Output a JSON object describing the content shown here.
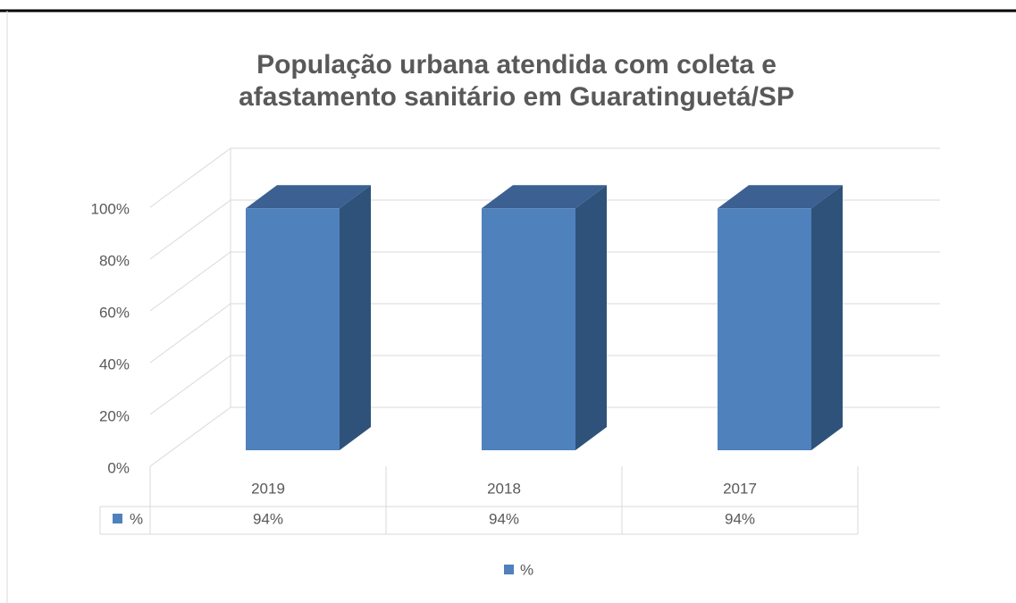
{
  "chart_data": {
    "type": "bar3d",
    "title": "População urbana atendida com coleta e afastamento sanitário em Guaratinguetá/SP",
    "categories": [
      "2019",
      "2018",
      "2017"
    ],
    "series": [
      {
        "name": "%",
        "color": "#4f81bd",
        "values": [
          94,
          94,
          94
        ],
        "value_labels": [
          "94%",
          "94%",
          "94%"
        ]
      }
    ],
    "ylim": [
      0,
      100
    ],
    "yticks": [
      {
        "value": 0,
        "label": "0%"
      },
      {
        "value": 20,
        "label": "20%"
      },
      {
        "value": 40,
        "label": "40%"
      },
      {
        "value": 60,
        "label": "60%"
      },
      {
        "value": 80,
        "label": "80%"
      },
      {
        "value": 100,
        "label": "100%"
      }
    ],
    "grid": true,
    "legend": "bottom"
  }
}
